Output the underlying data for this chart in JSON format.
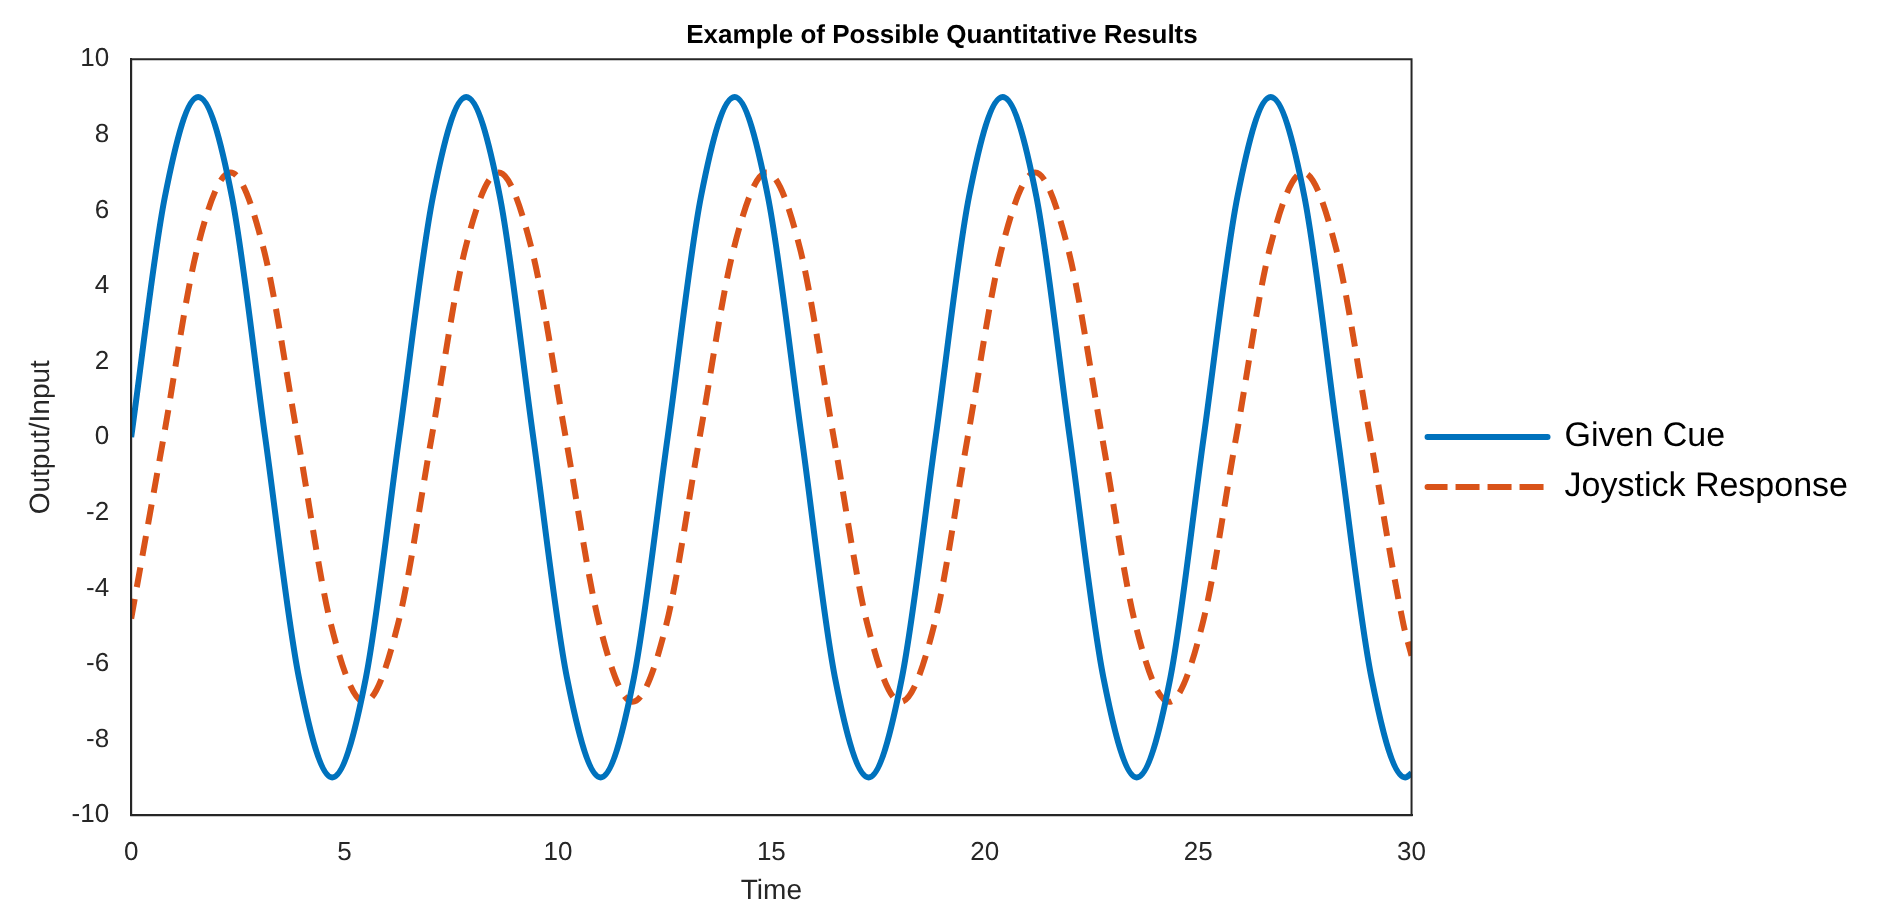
{
  "chart_data": {
    "type": "line",
    "title": "Example of Possible Quantitative Results",
    "xlabel": "Time",
    "ylabel": "Output/Input",
    "xlim": [
      0,
      30
    ],
    "xticks": [
      0,
      5,
      10,
      15,
      20,
      25,
      30
    ],
    "ylim": [
      -10,
      10
    ],
    "yticks": [
      -10,
      -8,
      -6,
      -4,
      -2,
      0,
      2,
      4,
      6,
      8,
      10
    ],
    "grid": false,
    "legend": "right",
    "marker": "none",
    "series": [
      {
        "name": "Given Cue",
        "color": "#0072bd",
        "line_style": "solid",
        "x": [
          0,
          0.79,
          1.57,
          2.36,
          3.14,
          3.93,
          4.71,
          5.5,
          6.28,
          7.07,
          7.85,
          8.64,
          9.42,
          10.21,
          11,
          11.78,
          12.57,
          13.35,
          14.14,
          14.92,
          15.71,
          16.49,
          17.28,
          18.06,
          18.85,
          19.63,
          20.42,
          21.21,
          21.99,
          22.78,
          23.56,
          24.35,
          25.13,
          25.92,
          26.7,
          27.49,
          28.27,
          29.06,
          29.85,
          30
        ],
        "values": [
          0,
          6.36,
          9,
          6.36,
          0,
          -6.36,
          -9,
          -6.36,
          0,
          6.36,
          9,
          6.36,
          0,
          -6.36,
          -9,
          -6.36,
          0,
          6.36,
          9,
          6.36,
          0,
          -6.36,
          -9,
          -6.36,
          0,
          6.36,
          9,
          6.36,
          0,
          -6.36,
          -9,
          -6.36,
          0,
          6.36,
          9,
          6.36,
          0,
          -6.36,
          -9,
          -8.89
        ]
      },
      {
        "name": "Joystick Response",
        "color": "#d95319",
        "line_style": "dashed",
        "x": [
          0,
          0.76,
          1.54,
          2.33,
          3.11,
          3.9,
          4.68,
          5.47,
          6.25,
          7.04,
          7.82,
          8.61,
          9.39,
          10.18,
          10.97,
          11.75,
          12.54,
          13.32,
          14.11,
          14.89,
          15.68,
          16.46,
          17.25,
          18.03,
          18.82,
          19.6,
          20.39,
          21.18,
          21.96,
          22.75,
          23.53,
          24.32,
          25.1,
          25.89,
          26.67,
          27.46,
          28.24,
          29.03,
          29.81,
          30
        ],
        "values": [
          -4.8,
          0,
          4.95,
          7,
          4.95,
          0,
          -4.95,
          -7,
          -4.95,
          0,
          4.95,
          7,
          4.95,
          0,
          -4.95,
          -7,
          -4.95,
          0,
          4.95,
          7,
          4.95,
          0,
          -4.95,
          -7,
          -4.95,
          0,
          4.95,
          7,
          4.95,
          0,
          -4.95,
          -7,
          -4.95,
          0,
          4.95,
          7,
          4.95,
          0,
          -4.95,
          -5.78
        ]
      }
    ]
  }
}
